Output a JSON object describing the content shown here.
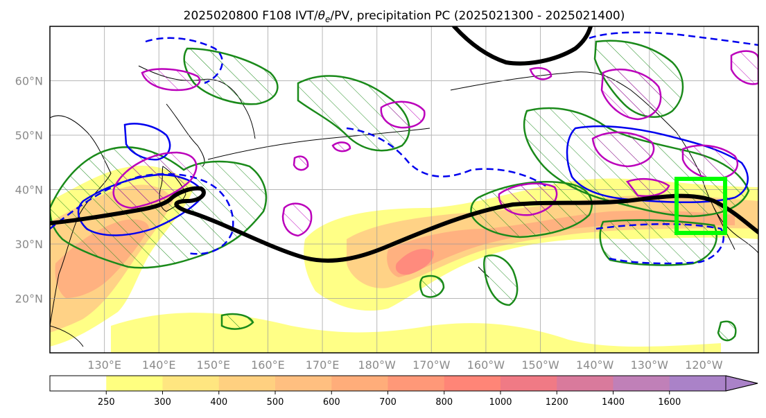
{
  "title": "2025020800 F108 IVT/θe/PV, precipitation PC (2025021300 - 2025021400)",
  "title_parts": {
    "prefix": "2025020800 F108 IVT/",
    "theta": "θ",
    "theta_sub": "e",
    "suffix": "/PV, precipitation PC (2025021300 - 2025021400)"
  },
  "map": {
    "lon_ticks": [
      "130°E",
      "140°E",
      "150°E",
      "160°E",
      "170°E",
      "180°W",
      "170°W",
      "160°W",
      "150°W",
      "140°W",
      "130°W",
      "120°W"
    ],
    "lat_ticks": [
      "60°N",
      "50°N",
      "40°N",
      "30°N",
      "20°N"
    ],
    "lon_range": [
      120,
      250
    ],
    "lat_range": [
      10,
      70
    ],
    "grid": true,
    "highlight_box": {
      "lon": [
        -125,
        -116
      ],
      "lat": [
        32,
        42
      ],
      "color": "#00ff00"
    },
    "colors": {
      "jet": "#000000",
      "green_contour": "#1a8a1a",
      "blue_contour": "#0000ee",
      "magenta_contour": "#bb00bb"
    }
  },
  "colorbar": {
    "levels": [
      "250",
      "300",
      "400",
      "500",
      "600",
      "700",
      "800",
      "1000",
      "1200",
      "1400",
      "1600"
    ],
    "colors": [
      "#ffff80",
      "#ffe680",
      "#ffd080",
      "#ffbf80",
      "#ffad7a",
      "#ff9878",
      "#ff8577",
      "#f07a85",
      "#d97a9c",
      "#c080b8",
      "#aa82c8"
    ],
    "extend": "max"
  }
}
